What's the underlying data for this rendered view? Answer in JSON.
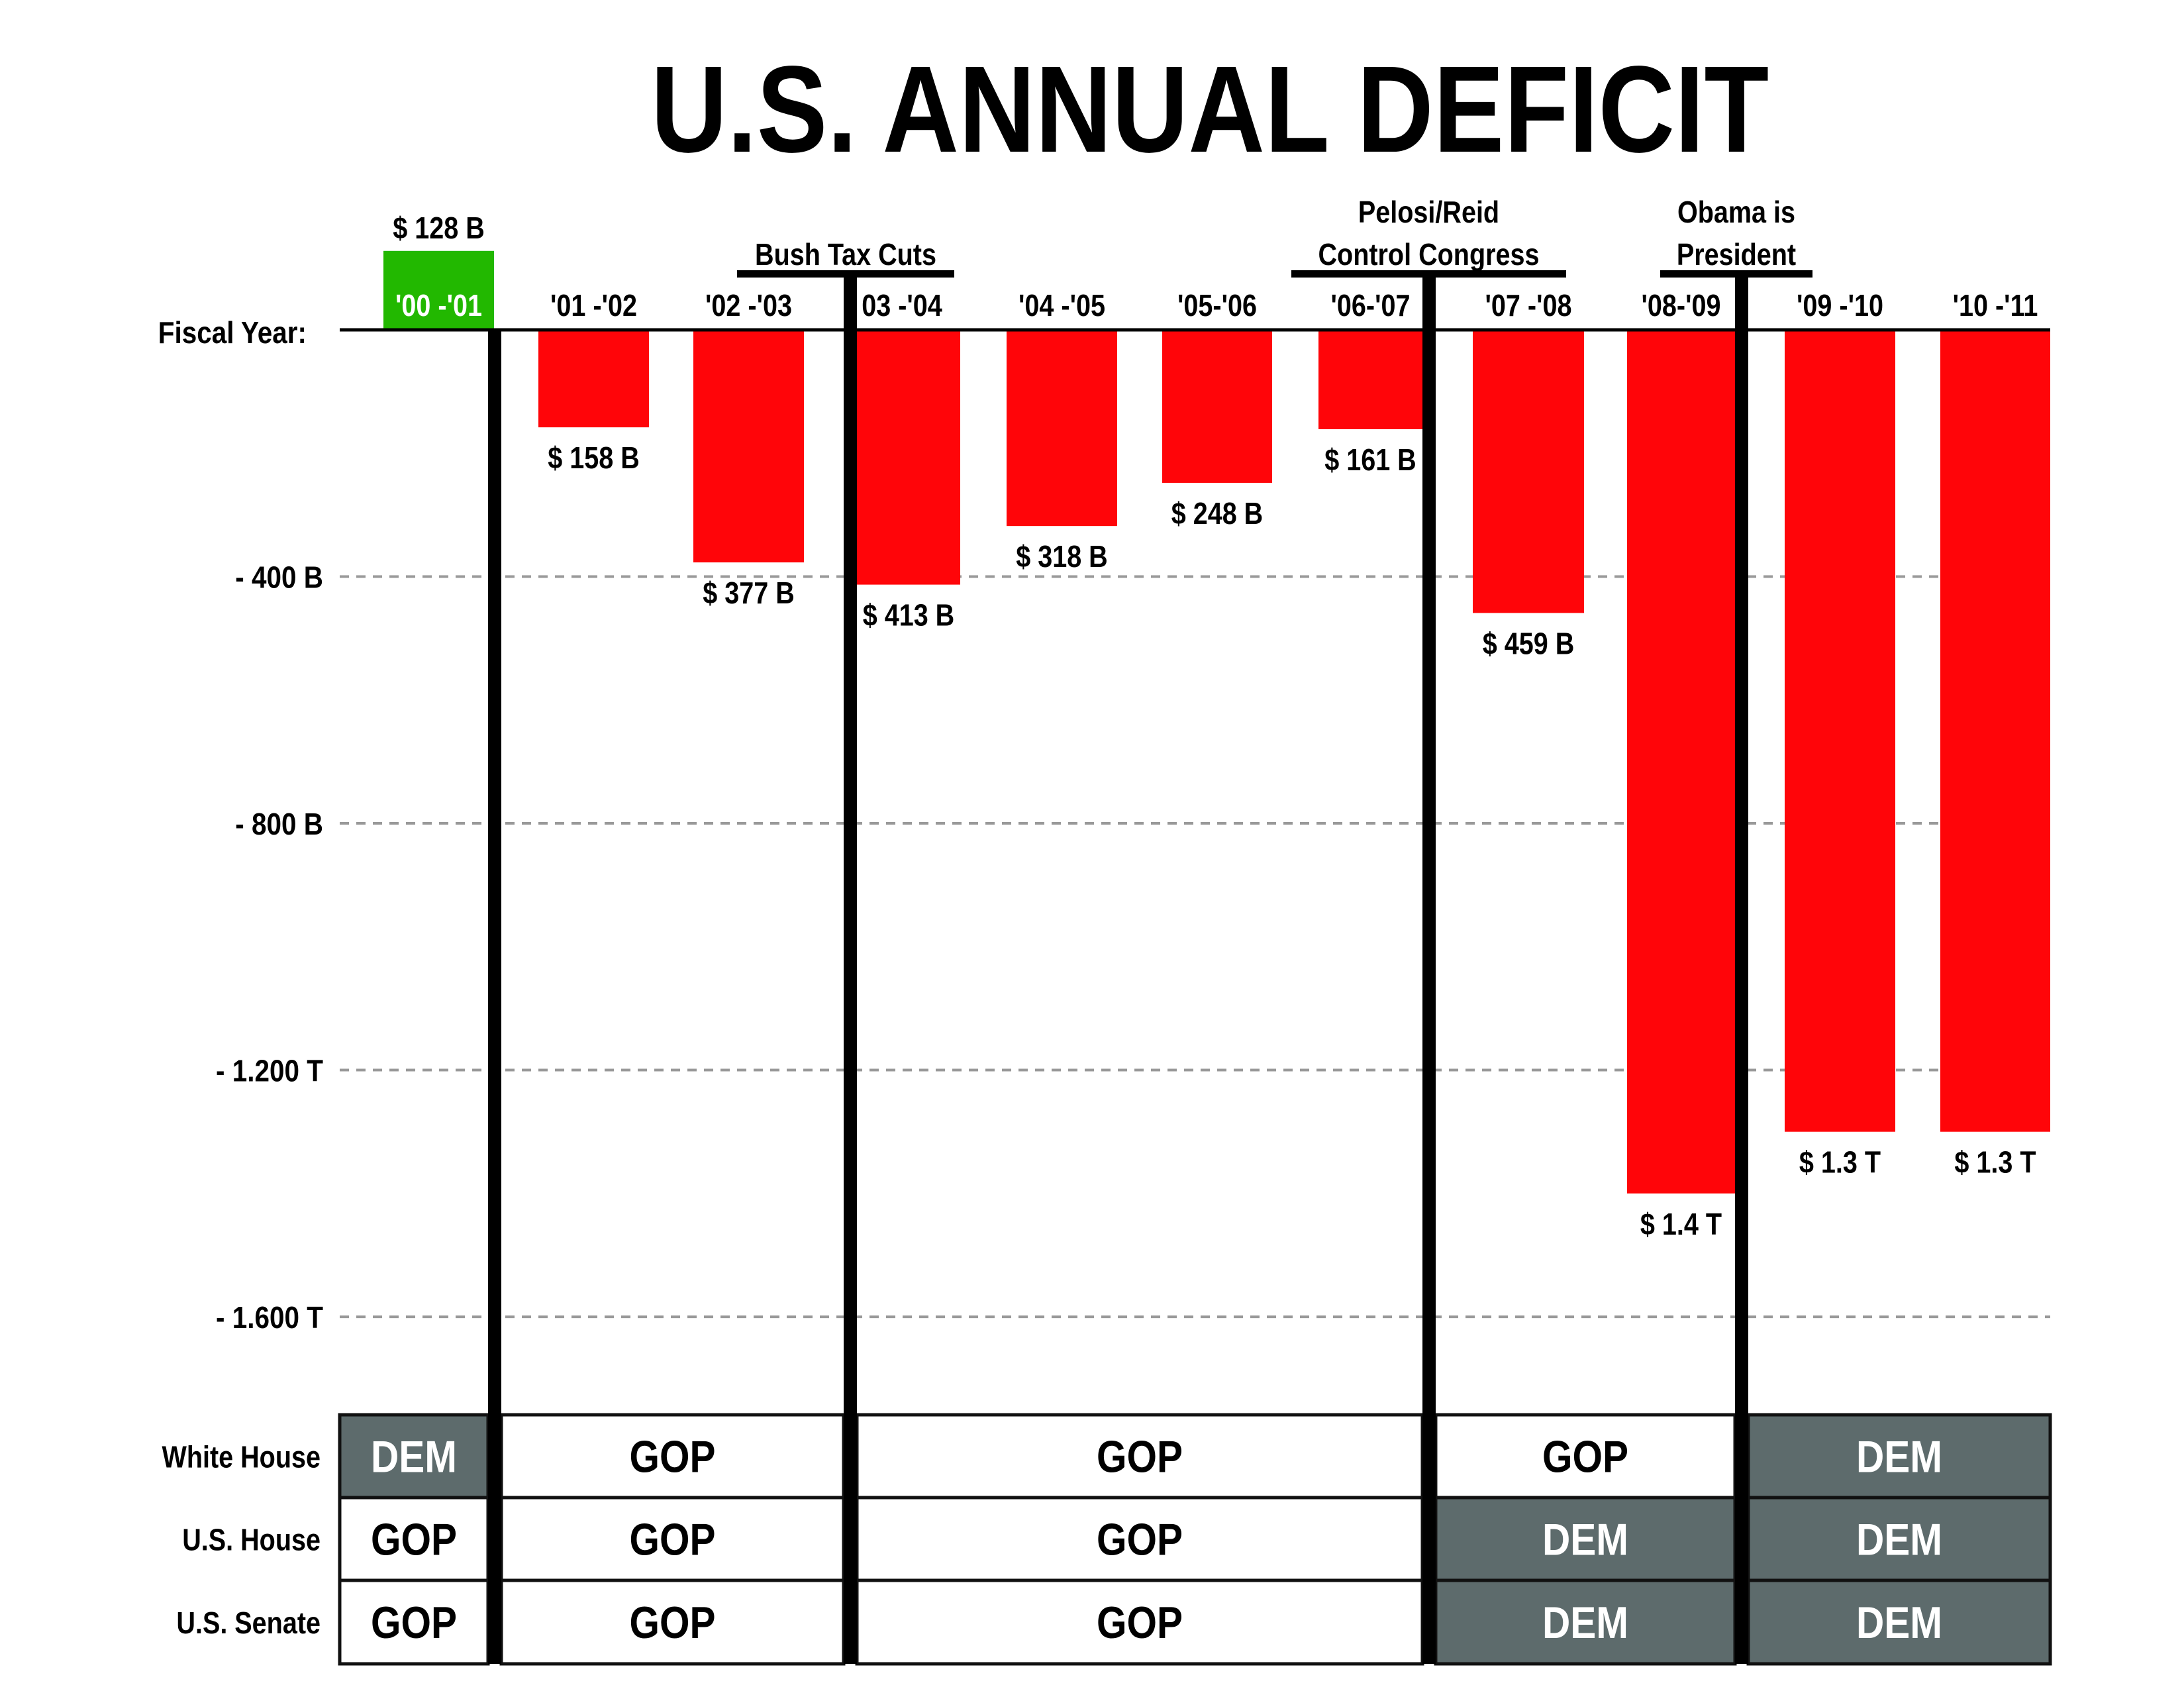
{
  "title": "U.S. ANNUAL DEFICIT",
  "colors": {
    "deficit": "#ff0509",
    "surplus": "#22b800",
    "dem_cell": "#5d6b6c",
    "gop_cell": "#ffffff",
    "gridline": "#999999",
    "divider": "#000000"
  },
  "fiscal_year_label": "Fiscal Year:",
  "chart_data": {
    "type": "bar",
    "title": "U.S. ANNUAL DEFICIT",
    "xlabel": "Fiscal Year:",
    "ylabel": "",
    "categories": [
      "'00 -'01",
      "'01 -'02",
      "'02 -'03",
      "03 -'04",
      "'04 -'05",
      "'05-'06",
      "'06-'07",
      "'07 -'08",
      "'08-'09",
      "'09 -'10",
      "'10 -'11"
    ],
    "values": [
      128,
      -158,
      -377,
      -413,
      -318,
      -248,
      -161,
      -459,
      -1400,
      -1300,
      -1300
    ],
    "value_labels": [
      "$ 128 B",
      "$ 158 B",
      "$ 377 B",
      "$ 413 B",
      "$ 318 B",
      "$ 248 B",
      "$ 161 B",
      "$ 459 B",
      "$ 1.4 T",
      "$ 1.3 T",
      "$ 1.3 T"
    ],
    "units": "billions USD",
    "ylim": [
      -1800,
      128
    ],
    "yticks": [
      {
        "value": -400,
        "label": "- 400 B"
      },
      {
        "value": -800,
        "label": "- 800 B"
      },
      {
        "value": -1200,
        "label": "- 1.200 T"
      },
      {
        "value": -1600,
        "label": "- 1.600 T"
      }
    ],
    "grid": true,
    "legend": "none",
    "annotations": [
      {
        "after_category_index": 2,
        "lines": [
          "Bush Tax Cuts"
        ]
      },
      {
        "after_category_index": 6,
        "lines": [
          "Pelosi/Reid",
          "Control Congress"
        ]
      },
      {
        "after_category_index": 8,
        "lines": [
          "Obama is",
          "President"
        ]
      }
    ],
    "dividers_after_index": [
      0,
      2,
      6,
      8
    ]
  },
  "control_table": {
    "rows": [
      {
        "label": "White House",
        "cells": [
          "DEM",
          "GOP",
          "GOP",
          "GOP",
          "DEM"
        ]
      },
      {
        "label": "U.S. House",
        "cells": [
          "GOP",
          "GOP",
          "GOP",
          "DEM",
          "DEM"
        ]
      },
      {
        "label": "U.S. Senate",
        "cells": [
          "GOP",
          "GOP",
          "GOP",
          "DEM",
          "DEM"
        ]
      }
    ]
  }
}
